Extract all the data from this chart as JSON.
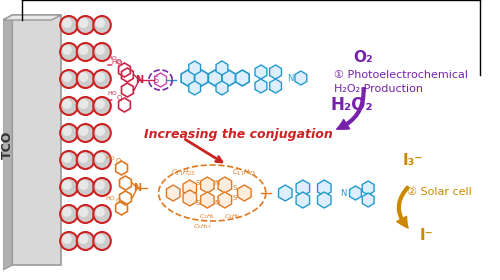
{
  "bg_color": "#ffffff",
  "tco_color": "#cccccc",
  "tco_text": "TCO",
  "sphere_color_outer": "#cc2222",
  "sphere_color_inner": "#aaaaaa",
  "dye1_color": "#cc2244",
  "dye2_color": "#e07820",
  "acceptor_color": "#2299cc",
  "purple_color": "#7722aa",
  "gold_color": "#cc8800",
  "red_arrow_color": "#cc2222",
  "purple_arrow_color": "#7722aa",
  "gold_arrow_color": "#cc8800",
  "title_text": "Increasing the conjugation",
  "label1_o2": "O₂",
  "label1_circ": "①",
  "label1_photochem": "Photoelectrochemical",
  "label1_h2o2prod": "H₂O₂ Production",
  "label1_h2o2": "H₂O₂",
  "label2_i3": "I₃⁻",
  "label2_circ": "②",
  "label2_solar": "Solar cell",
  "label2_i": "I⁻",
  "line_color": "#000000"
}
